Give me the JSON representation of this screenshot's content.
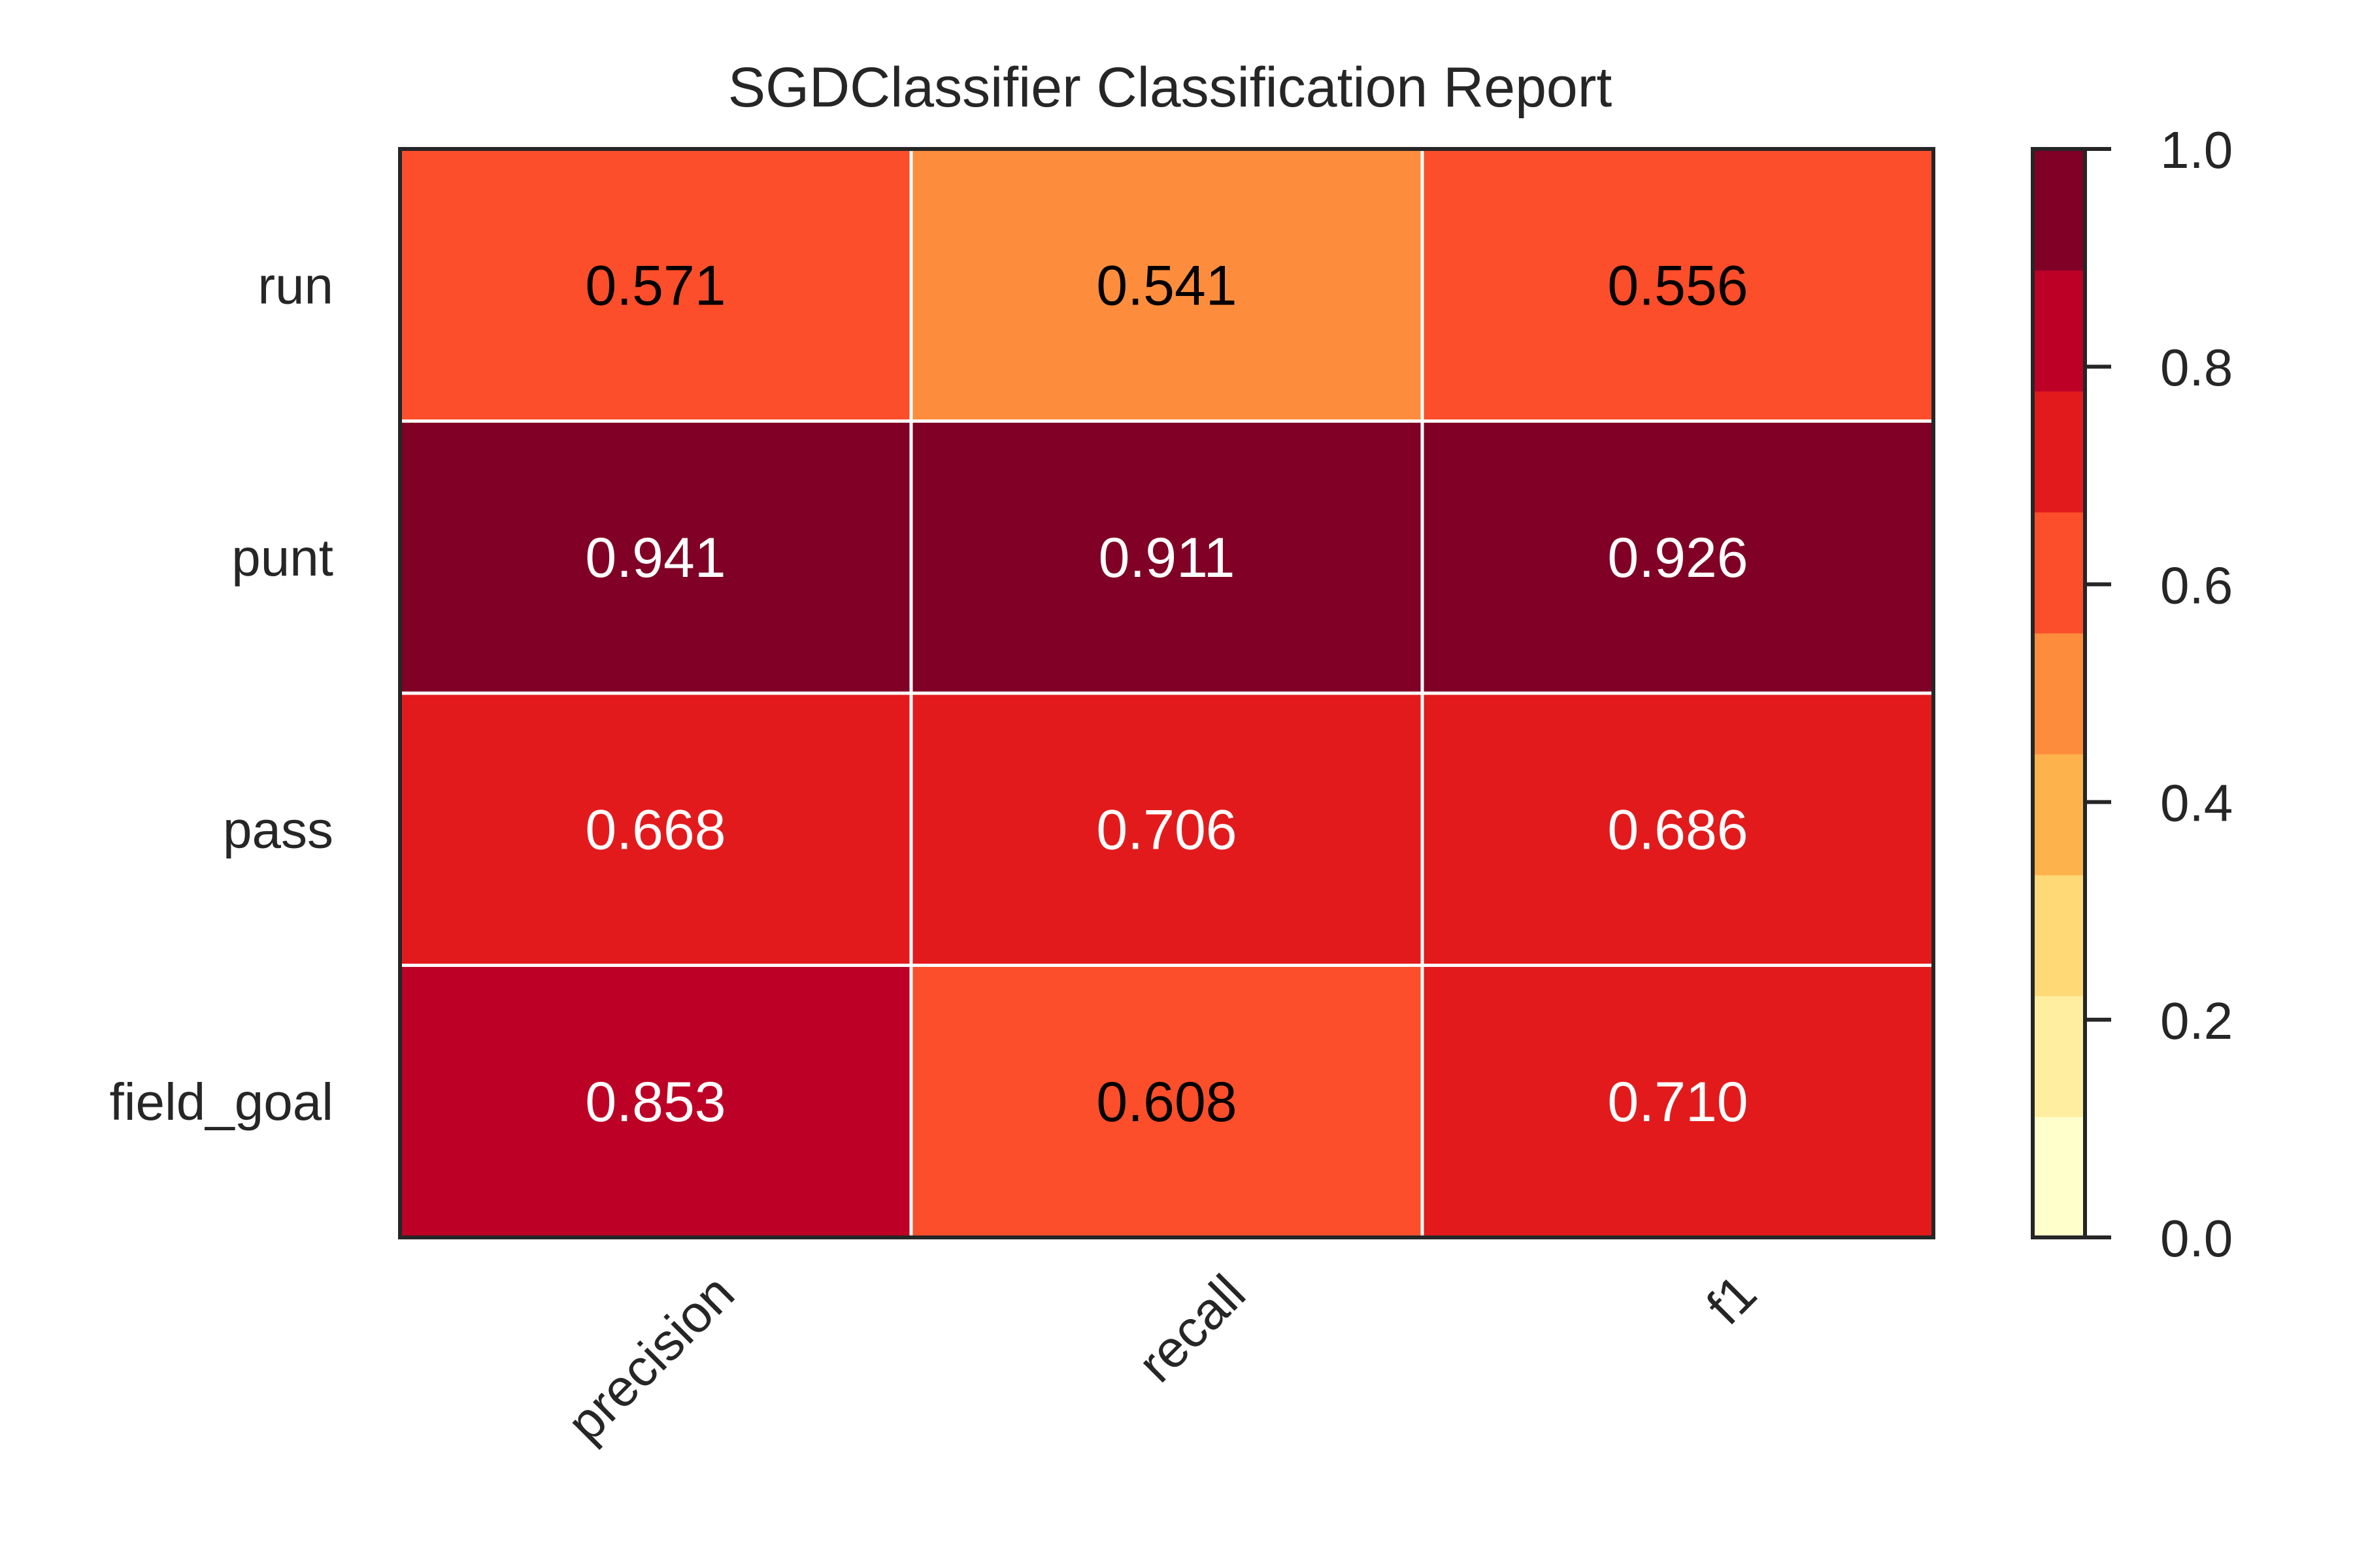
{
  "chart_data": {
    "type": "heatmap",
    "title": "SGDClassifier Classification Report",
    "columns": [
      "precision",
      "recall",
      "f1"
    ],
    "rows": [
      "run",
      "punt",
      "pass",
      "field_goal"
    ],
    "values": [
      [
        0.571,
        0.541,
        0.556
      ],
      [
        0.941,
        0.911,
        0.926
      ],
      [
        0.668,
        0.706,
        0.686
      ],
      [
        0.853,
        0.608,
        0.71
      ]
    ],
    "value_labels": [
      [
        "0.571",
        "0.541",
        "0.556"
      ],
      [
        "0.941",
        "0.911",
        "0.926"
      ],
      [
        "0.668",
        "0.706",
        "0.686"
      ],
      [
        "0.853",
        "0.608",
        "0.710"
      ]
    ],
    "colorbar": {
      "range": [
        0.0,
        1.0
      ],
      "ticks": [
        "0.0",
        "0.2",
        "0.4",
        "0.6",
        "0.8",
        "1.0"
      ],
      "bins": 9,
      "colors": [
        "#ffffcc",
        "#ffeda0",
        "#fed976",
        "#feb24c",
        "#fd8d3c",
        "#fc4e2a",
        "#e31a1c",
        "#bd0026",
        "#800026"
      ]
    },
    "grid": true
  }
}
